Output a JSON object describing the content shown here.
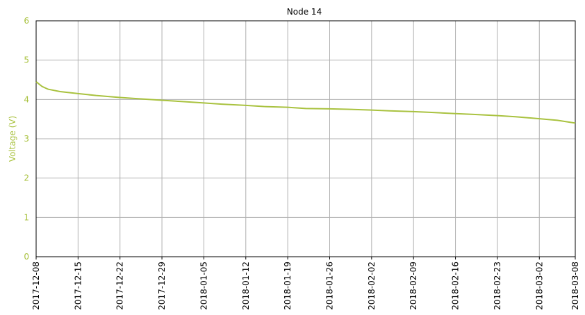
{
  "chart_data": {
    "type": "line",
    "title": "Node 14",
    "y_label": "Voltage (V)",
    "x": [
      "2017-12-08",
      "2017-12-09",
      "2017-12-10",
      "2017-12-12",
      "2017-12-15",
      "2017-12-18",
      "2017-12-22",
      "2017-12-25",
      "2017-12-29",
      "2018-01-01",
      "2018-01-05",
      "2018-01-08",
      "2018-01-12",
      "2018-01-15",
      "2018-01-19",
      "2018-01-22",
      "2018-01-26",
      "2018-01-29",
      "2018-02-02",
      "2018-02-05",
      "2018-02-09",
      "2018-02-12",
      "2018-02-16",
      "2018-02-19",
      "2018-02-23",
      "2018-02-26",
      "2018-03-02",
      "2018-03-05",
      "2018-03-08"
    ],
    "series": [
      {
        "color": "#a9c23f",
        "values": [
          4.45,
          4.33,
          4.26,
          4.2,
          4.15,
          4.1,
          4.05,
          4.02,
          3.98,
          3.95,
          3.91,
          3.88,
          3.85,
          3.82,
          3.8,
          3.77,
          3.76,
          3.75,
          3.73,
          3.71,
          3.69,
          3.67,
          3.64,
          3.62,
          3.59,
          3.56,
          3.51,
          3.47,
          3.4
        ]
      }
    ],
    "xlim": [
      "2017-12-08",
      "2018-03-08"
    ],
    "xticks": [
      "2017-12-08",
      "2017-12-15",
      "2017-12-22",
      "2017-12-29",
      "2018-01-05",
      "2018-01-12",
      "2018-01-19",
      "2018-01-26",
      "2018-02-02",
      "2018-02-09",
      "2018-02-16",
      "2018-02-23",
      "2018-03-02",
      "2018-03-08"
    ],
    "ylim": [
      0,
      6
    ],
    "yticks": [
      0,
      1,
      2,
      3,
      4,
      5,
      6
    ],
    "grid": true
  }
}
